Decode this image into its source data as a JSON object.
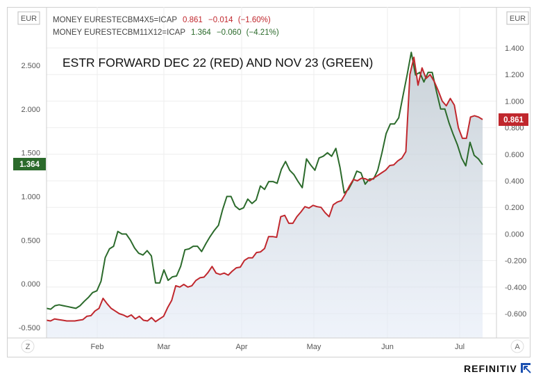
{
  "chart_data": {
    "type": "line",
    "title": "ESTR FORWARD DEC 22 (RED) AND NOV 23 (GREEN)",
    "left_axis": {
      "unit_label": "EUR",
      "ticks": [
        "2.500",
        "2.000",
        "1.500",
        "1.000",
        "0.500",
        "0.000",
        "-0.500"
      ],
      "ylim": [
        -0.5,
        2.5
      ]
    },
    "right_axis": {
      "unit_label": "EUR",
      "ticks": [
        "1.400",
        "1.200",
        "1.000",
        "0.800",
        "0.600",
        "0.400",
        "0.200",
        "0.000",
        "-0.200",
        "-0.400",
        "-0.600"
      ],
      "ylim": [
        -0.6,
        1.4
      ]
    },
    "x_ticks": [
      "Feb",
      "Mar",
      "Apr",
      "May",
      "Jun",
      "Jul"
    ],
    "corner_left": "Z",
    "corner_right": "A",
    "legend_placement": "top-left",
    "series": [
      {
        "label": "MONEY EURESTECBM4X5=ICAP",
        "last": "0.861",
        "change": "−0.014",
        "pct": "(−1.60%)",
        "axis": "right",
        "color": "#c0272d",
        "badge": "0.861",
        "values": [
          -0.65,
          -0.655,
          -0.64,
          -0.645,
          -0.65,
          -0.655,
          -0.655,
          -0.655,
          -0.65,
          -0.645,
          -0.62,
          -0.615,
          -0.58,
          -0.56,
          -0.485,
          -0.525,
          -0.56,
          -0.58,
          -0.6,
          -0.61,
          -0.625,
          -0.61,
          -0.64,
          -0.62,
          -0.65,
          -0.655,
          -0.63,
          -0.66,
          -0.64,
          -0.62,
          -0.555,
          -0.5,
          -0.39,
          -0.4,
          -0.38,
          -0.4,
          -0.39,
          -0.35,
          -0.33,
          -0.325,
          -0.29,
          -0.245,
          -0.295,
          -0.305,
          -0.295,
          -0.31,
          -0.28,
          -0.255,
          -0.25,
          -0.2,
          -0.18,
          -0.18,
          -0.14,
          -0.135,
          -0.11,
          -0.02,
          -0.02,
          -0.025,
          0.13,
          0.14,
          0.08,
          0.08,
          0.13,
          0.165,
          0.205,
          0.195,
          0.215,
          0.205,
          0.2,
          0.16,
          0.13,
          0.22,
          0.24,
          0.25,
          0.3,
          0.36,
          0.41,
          0.4,
          0.42,
          0.415,
          0.4,
          0.42,
          0.44,
          0.46,
          0.48,
          0.515,
          0.52,
          0.55,
          0.57,
          0.62,
          1.2,
          1.33,
          1.12,
          1.25,
          1.17,
          1.2,
          1.15,
          1.08,
          1.0,
          0.965,
          1.02,
          0.97,
          0.8,
          0.72,
          0.72,
          0.88,
          0.89,
          0.88,
          0.861
        ]
      },
      {
        "label": "MONEY EURESTECBM11X12=ICAP",
        "last": "1.364",
        "change": "−0.060",
        "pct": "(−4.21%)",
        "axis": "left",
        "color": "#2b6a2b",
        "badge": "1.364",
        "values": [
          -0.28,
          -0.29,
          -0.25,
          -0.24,
          -0.25,
          -0.26,
          -0.27,
          -0.28,
          -0.25,
          -0.2,
          -0.155,
          -0.1,
          -0.08,
          0.03,
          0.3,
          0.4,
          0.43,
          0.6,
          0.57,
          0.57,
          0.5,
          0.41,
          0.35,
          0.33,
          0.38,
          0.32,
          0.01,
          0.01,
          0.16,
          0.04,
          0.08,
          0.09,
          0.2,
          0.39,
          0.4,
          0.43,
          0.43,
          0.37,
          0.46,
          0.54,
          0.61,
          0.67,
          0.85,
          1.0,
          1.0,
          0.89,
          0.85,
          0.87,
          0.97,
          0.92,
          0.96,
          1.12,
          1.08,
          1.17,
          1.17,
          1.15,
          1.31,
          1.4,
          1.3,
          1.25,
          1.17,
          1.1,
          1.43,
          1.36,
          1.3,
          1.44,
          1.46,
          1.5,
          1.46,
          1.55,
          1.33,
          1.04,
          1.08,
          1.17,
          1.29,
          1.27,
          1.14,
          1.2,
          1.2,
          1.3,
          1.5,
          1.72,
          1.83,
          1.83,
          1.9,
          2.15,
          2.39,
          2.65,
          2.39,
          2.42,
          2.31,
          2.42,
          2.42,
          2.2,
          2.0,
          2.0,
          1.84,
          1.71,
          1.59,
          1.44,
          1.35,
          1.62,
          1.47,
          1.43,
          1.364
        ]
      }
    ]
  },
  "brand": "REFINITIV"
}
